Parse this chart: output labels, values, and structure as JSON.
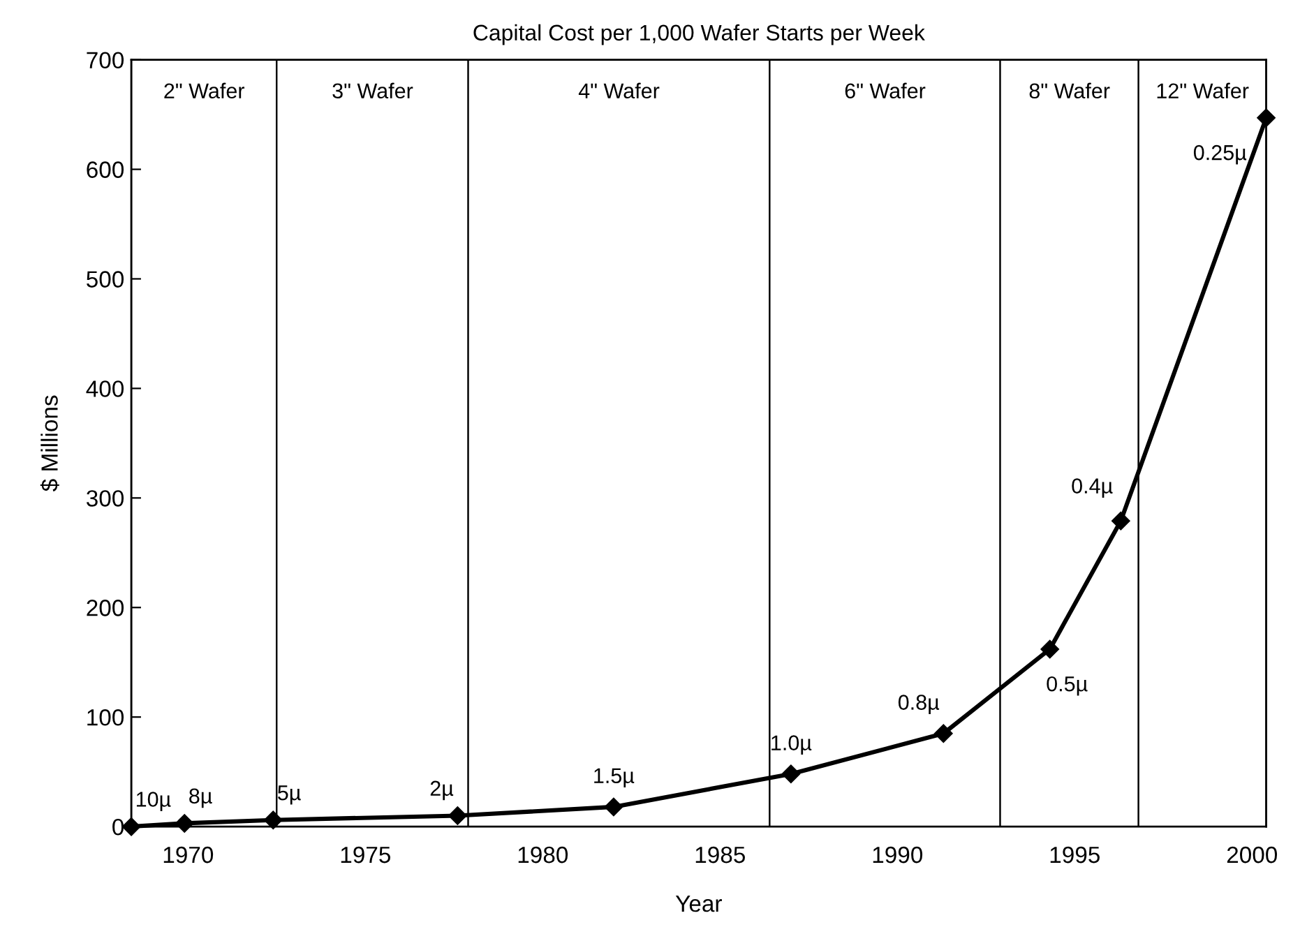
{
  "chart_data": {
    "type": "line",
    "title": "Capital Cost per 1,000 Wafer Starts per Week",
    "xlabel": "Year",
    "ylabel": "$ Millions",
    "x": [
      1968.4,
      1969.9,
      1972.4,
      1977.6,
      1982.0,
      1987.0,
      1991.3,
      1994.3,
      1996.3,
      2000.4
    ],
    "series": [
      {
        "color": "#000000",
        "values": [
          0,
          3,
          6,
          10,
          18,
          48,
          85,
          162,
          279,
          647
        ]
      }
    ],
    "marker": "diamond",
    "line_style": "solid",
    "grid": false,
    "legend": false,
    "xlim": [
      1968.4,
      2000.4
    ],
    "xticks": [
      1970,
      1975,
      1980,
      1985,
      1990,
      1995,
      2000
    ],
    "ylim": [
      0,
      700
    ],
    "yticks": [
      0,
      100,
      200,
      300,
      400,
      500,
      600,
      700
    ],
    "bands": [
      {
        "axis": "x",
        "from": 1968.4,
        "to": 1972.5,
        "label": "2\" Wafer",
        "color": "#ffffff"
      },
      {
        "axis": "x",
        "from": 1972.5,
        "to": 1977.9,
        "label": "3\" Wafer",
        "color": "#ffffff"
      },
      {
        "axis": "x",
        "from": 1977.9,
        "to": 1986.4,
        "label": "4\" Wafer",
        "color": "#ffffff"
      },
      {
        "axis": "x",
        "from": 1986.4,
        "to": 1992.9,
        "label": "6\" Wafer",
        "color": "#ffffff"
      },
      {
        "axis": "x",
        "from": 1992.9,
        "to": 1996.8,
        "label": "8\" Wafer",
        "color": "#ffffff"
      },
      {
        "axis": "x",
        "from": 1996.8,
        "to": 2000.4,
        "label": "12\" Wafer",
        "color": "#ffffff"
      }
    ],
    "annotations": [
      {
        "text": "10µ",
        "x": 1968.4,
        "y": 0
      },
      {
        "text": "8µ",
        "x": 1969.9,
        "y": 3
      },
      {
        "text": "5µ",
        "x": 1972.4,
        "y": 6
      },
      {
        "text": "2µ",
        "x": 1977.6,
        "y": 10
      },
      {
        "text": "1.5µ",
        "x": 1982.0,
        "y": 18
      },
      {
        "text": "1.0µ",
        "x": 1987.0,
        "y": 48
      },
      {
        "text": "0.8µ",
        "x": 1991.3,
        "y": 85
      },
      {
        "text": "0.5µ",
        "x": 1994.3,
        "y": 162
      },
      {
        "text": "0.4µ",
        "x": 1996.3,
        "y": 279
      },
      {
        "text": "0.25µ",
        "x": 2000.4,
        "y": 647
      }
    ]
  }
}
